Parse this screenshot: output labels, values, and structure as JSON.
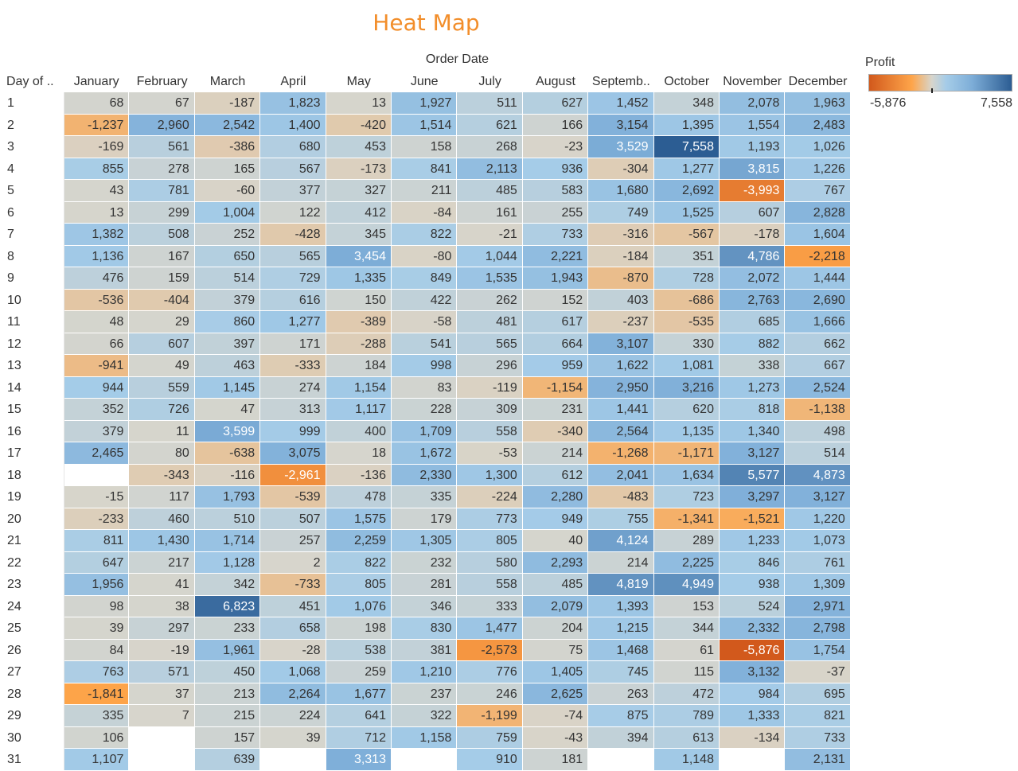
{
  "chart_data": {
    "type": "heatmap",
    "title": "Heat Map",
    "column_group_label": "Order Date",
    "row_header_label": "Day of ..",
    "columns": [
      "January",
      "February",
      "March",
      "April",
      "May",
      "June",
      "July",
      "August",
      "Septemb..",
      "October",
      "November",
      "December"
    ],
    "rows": [
      "1",
      "2",
      "3",
      "4",
      "5",
      "6",
      "7",
      "8",
      "9",
      "10",
      "11",
      "12",
      "13",
      "14",
      "15",
      "16",
      "17",
      "18",
      "19",
      "20",
      "21",
      "22",
      "23",
      "24",
      "25",
      "26",
      "27",
      "28",
      "29",
      "30",
      "31"
    ],
    "values": [
      [
        68,
        67,
        -187,
        1823,
        13,
        1927,
        511,
        627,
        1452,
        348,
        2078,
        1963
      ],
      [
        -1237,
        2960,
        2542,
        1400,
        -420,
        1514,
        621,
        166,
        3154,
        1395,
        1554,
        2483
      ],
      [
        -169,
        561,
        -386,
        680,
        453,
        158,
        268,
        -23,
        3529,
        7558,
        1193,
        1026
      ],
      [
        855,
        278,
        165,
        567,
        -173,
        841,
        2113,
        936,
        -304,
        1277,
        3815,
        1226
      ],
      [
        43,
        781,
        -60,
        377,
        327,
        211,
        485,
        583,
        1680,
        2692,
        -3993,
        767
      ],
      [
        13,
        299,
        1004,
        122,
        412,
        -84,
        161,
        255,
        749,
        1525,
        607,
        2828
      ],
      [
        1382,
        508,
        252,
        -428,
        345,
        822,
        -21,
        733,
        -316,
        -567,
        -178,
        1604
      ],
      [
        1136,
        167,
        650,
        565,
        3454,
        -80,
        1044,
        2221,
        -184,
        351,
        4786,
        -2218
      ],
      [
        476,
        159,
        514,
        729,
        1335,
        849,
        1535,
        1943,
        -870,
        728,
        2072,
        1444
      ],
      [
        -536,
        -404,
        379,
        616,
        150,
        422,
        262,
        152,
        403,
        -686,
        2763,
        2690
      ],
      [
        48,
        29,
        860,
        1277,
        -389,
        -58,
        481,
        617,
        -237,
        -535,
        685,
        1666
      ],
      [
        66,
        607,
        397,
        171,
        -288,
        541,
        565,
        664,
        3107,
        330,
        882,
        662
      ],
      [
        -941,
        49,
        463,
        -333,
        184,
        998,
        296,
        959,
        1622,
        1081,
        338,
        667
      ],
      [
        944,
        559,
        1145,
        274,
        1154,
        83,
        -119,
        -1154,
        2950,
        3216,
        1273,
        2524
      ],
      [
        352,
        726,
        47,
        313,
        1117,
        228,
        309,
        231,
        1441,
        620,
        818,
        -1138
      ],
      [
        379,
        11,
        3599,
        999,
        400,
        1709,
        558,
        -340,
        2564,
        1135,
        1340,
        498
      ],
      [
        2465,
        80,
        -638,
        3075,
        18,
        1672,
        -53,
        214,
        -1268,
        -1171,
        3127,
        514
      ],
      [
        null,
        -343,
        -116,
        -2961,
        -136,
        2330,
        1300,
        612,
        2041,
        1634,
        5577,
        4873
      ],
      [
        -15,
        117,
        1793,
        -539,
        478,
        335,
        -224,
        2280,
        -483,
        723,
        3297,
        3127
      ],
      [
        -233,
        460,
        510,
        507,
        1575,
        179,
        773,
        949,
        755,
        -1341,
        -1521,
        1220
      ],
      [
        811,
        1430,
        1714,
        257,
        2259,
        1305,
        805,
        40,
        4124,
        289,
        1233,
        1073
      ],
      [
        647,
        217,
        1128,
        2,
        822,
        232,
        580,
        2293,
        214,
        2225,
        846,
        761
      ],
      [
        1956,
        41,
        342,
        -733,
        805,
        281,
        558,
        485,
        4819,
        4949,
        938,
        1309
      ],
      [
        98,
        38,
        6823,
        451,
        1076,
        346,
        333,
        2079,
        1393,
        153,
        524,
        2971
      ],
      [
        39,
        297,
        233,
        658,
        198,
        830,
        1477,
        204,
        1215,
        344,
        2332,
        2798
      ],
      [
        84,
        -19,
        1961,
        -28,
        538,
        381,
        -2573,
        75,
        1468,
        61,
        -5876,
        1754
      ],
      [
        763,
        571,
        450,
        1068,
        259,
        1210,
        776,
        1405,
        745,
        115,
        3132,
        -37
      ],
      [
        -1841,
        37,
        213,
        2264,
        1677,
        237,
        246,
        2625,
        263,
        472,
        984,
        695
      ],
      [
        335,
        7,
        215,
        224,
        641,
        322,
        -1199,
        -74,
        875,
        789,
        1333,
        821
      ],
      [
        106,
        null,
        157,
        39,
        712,
        1158,
        759,
        -43,
        394,
        613,
        -134,
        733
      ],
      [
        1107,
        null,
        639,
        null,
        3313,
        null,
        910,
        181,
        null,
        1148,
        null,
        2131
      ]
    ],
    "legend": {
      "title": "Profit",
      "min_label": "-5,876",
      "max_label": "7,558",
      "min": -5876,
      "max": 7558,
      "placement": "top-right"
    },
    "colors": {
      "negative_strong": "#d2591c",
      "negative_mid": "#fea54a",
      "neutral": "#d7d5cc",
      "positive_light": "#a5cce8",
      "positive_mid": "#7eaed8",
      "positive_strong": "#2c5d93",
      "text_dark": "#333333",
      "text_light": "#ffffff"
    }
  }
}
